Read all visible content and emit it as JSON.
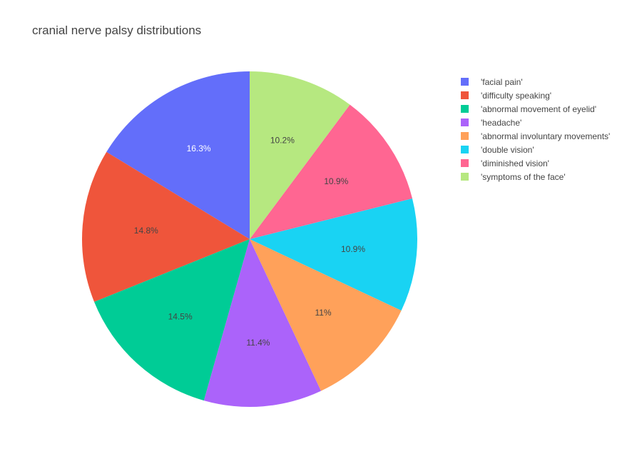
{
  "chart_data": {
    "type": "pie",
    "title": "cranial nerve palsy distributions",
    "labels": [
      "'facial pain'",
      "'difficulty speaking'",
      "'abnormal movement of eyelid'",
      "'headache'",
      "'abnormal involuntary movements'",
      "'double vision'",
      "'diminished vision'",
      "'symptoms of the face'"
    ],
    "values": [
      16.3,
      14.8,
      14.5,
      11.4,
      11.0,
      10.9,
      10.9,
      10.2
    ],
    "text_labels": [
      "16.3%",
      "14.8%",
      "14.5%",
      "11.4%",
      "11%",
      "10.9%",
      "10.9%",
      "10.2%"
    ],
    "colors": [
      "#636efa",
      "#ef553b",
      "#00cc96",
      "#ab63fa",
      "#ffa15a",
      "#19d3f3",
      "#ff6692",
      "#b6e880"
    ],
    "label_colors": [
      "#ffffff",
      "#444444",
      "#444444",
      "#444444",
      "#444444",
      "#444444",
      "#444444",
      "#444444"
    ],
    "direction": "counterclockwise",
    "start_angle": "top",
    "legend_position": "top-right",
    "legend_order": [
      0,
      1,
      2,
      3,
      4,
      5,
      6,
      7
    ]
  }
}
